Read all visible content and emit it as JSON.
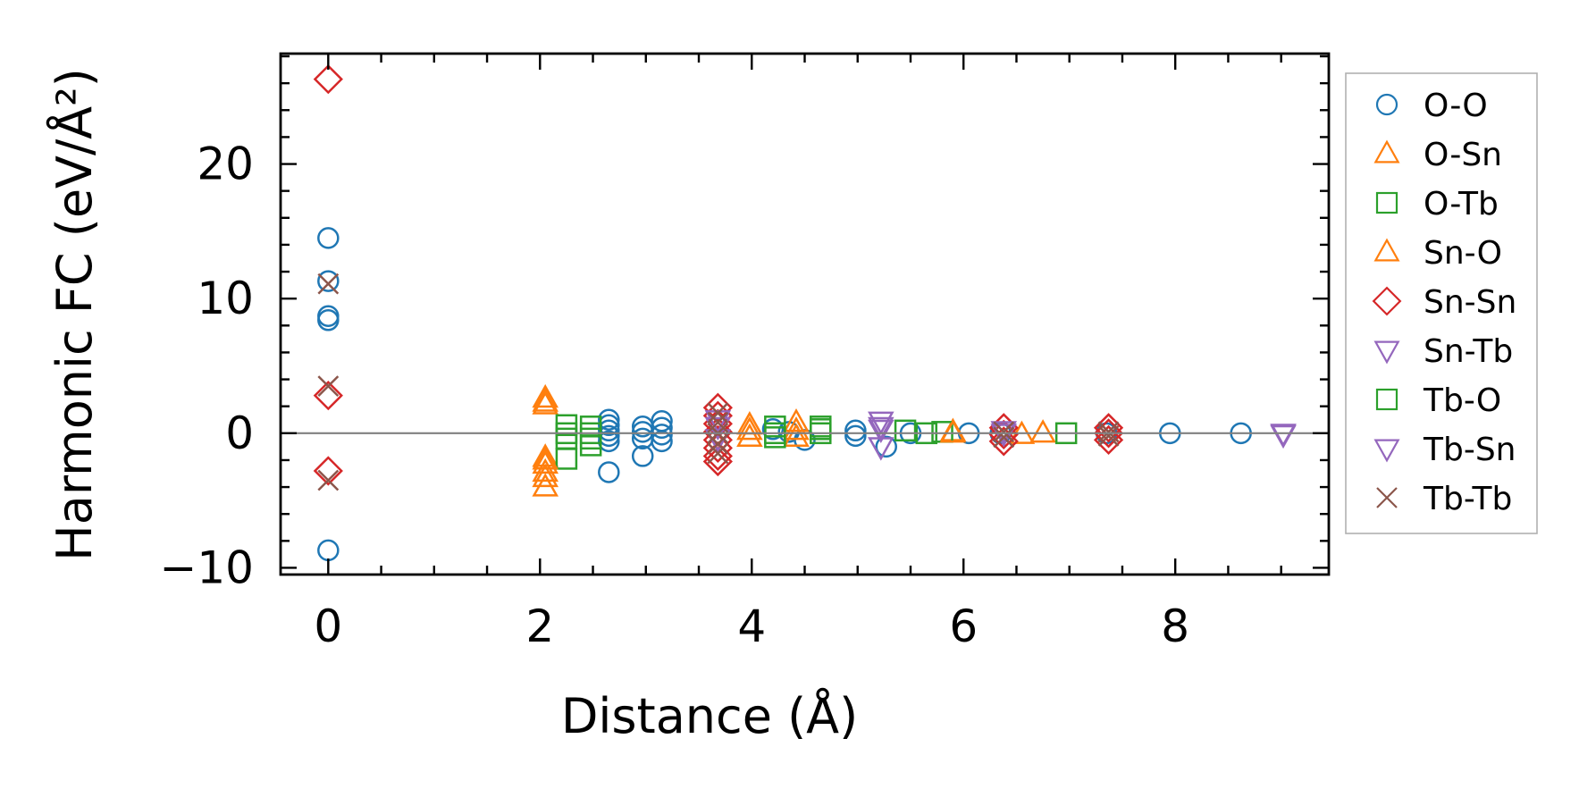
{
  "chart_data": {
    "type": "scatter",
    "xlabel": "Distance (Å)",
    "ylabel": "Harmonic FC (eV/Å²)",
    "xlim": [
      -0.45,
      9.45
    ],
    "ylim": [
      -10.5,
      28.2
    ],
    "x_ticks": [
      0,
      2,
      4,
      6,
      8
    ],
    "y_ticks": [
      -10,
      0,
      10,
      20
    ],
    "x_tick_labels": [
      "0",
      "2",
      "4",
      "6",
      "8"
    ],
    "y_tick_labels": [
      "−10",
      "0",
      "10",
      "20"
    ],
    "grid": false,
    "zero_line": true,
    "legend_position": "outside-right",
    "series": [
      {
        "name": "O-O",
        "marker": "circle",
        "color": "#1f77b4",
        "points": [
          [
            0,
            14.5
          ],
          [
            0,
            11.3
          ],
          [
            0,
            8.7
          ],
          [
            0,
            8.4
          ],
          [
            0,
            -8.7
          ],
          [
            2.65,
            1.0
          ],
          [
            2.65,
            0.6
          ],
          [
            2.65,
            0.2
          ],
          [
            2.65,
            -0.2
          ],
          [
            2.65,
            -0.6
          ],
          [
            2.65,
            -2.9
          ],
          [
            2.97,
            0.5
          ],
          [
            2.97,
            0.1
          ],
          [
            2.97,
            -0.4
          ],
          [
            2.97,
            -1.7
          ],
          [
            3.15,
            0.9
          ],
          [
            3.15,
            0.4
          ],
          [
            3.15,
            -0.1
          ],
          [
            3.15,
            -0.6
          ],
          [
            4.2,
            0.3
          ],
          [
            4.35,
            0.1
          ],
          [
            4.5,
            -0.5
          ],
          [
            4.98,
            0.2
          ],
          [
            4.98,
            -0.2
          ],
          [
            5.27,
            -1.0
          ],
          [
            5.5,
            0.0
          ],
          [
            6.05,
            0.0
          ],
          [
            6.35,
            0.0
          ],
          [
            7.35,
            0.0
          ],
          [
            7.95,
            0.0
          ],
          [
            8.62,
            0.0
          ]
        ]
      },
      {
        "name": "O-Sn",
        "marker": "triangle-up",
        "color": "#ff7f0e",
        "points": [
          [
            2.05,
            2.6
          ],
          [
            2.05,
            2.1
          ],
          [
            2.05,
            -1.8
          ],
          [
            2.05,
            -2.3
          ],
          [
            2.05,
            -2.9
          ],
          [
            2.05,
            -3.3
          ],
          [
            2.05,
            -4.0
          ],
          [
            3.98,
            0.6
          ],
          [
            3.98,
            -0.3
          ],
          [
            4.42,
            0.8
          ],
          [
            4.42,
            -0.3
          ],
          [
            5.9,
            0.1
          ],
          [
            6.55,
            -0.1
          ],
          [
            6.75,
            0.0
          ]
        ]
      },
      {
        "name": "O-Tb",
        "marker": "square",
        "color": "#2ca02c",
        "points": [
          [
            2.25,
            0.6
          ],
          [
            2.25,
            -0.4
          ],
          [
            2.25,
            -1.9
          ],
          [
            2.48,
            0.5
          ],
          [
            2.48,
            -0.4
          ],
          [
            2.48,
            -0.9
          ],
          [
            4.22,
            0.5
          ],
          [
            4.22,
            -0.3
          ],
          [
            4.65,
            0.5
          ],
          [
            4.65,
            0.0
          ],
          [
            5.45,
            0.2
          ],
          [
            5.65,
            0.0
          ],
          [
            5.8,
            0.1
          ],
          [
            6.97,
            0.0
          ]
        ]
      },
      {
        "name": "Sn-O",
        "marker": "triangle-up",
        "color": "#ff7f0e",
        "points": [
          [
            2.05,
            2.3
          ],
          [
            2.05,
            -2.0
          ],
          [
            3.98,
            0.2
          ],
          [
            4.42,
            0.2
          ],
          [
            5.9,
            0.0
          ]
        ]
      },
      {
        "name": "Sn-Sn",
        "marker": "diamond",
        "color": "#d62728",
        "points": [
          [
            0,
            26.3
          ],
          [
            0,
            2.8
          ],
          [
            0,
            -2.8
          ],
          [
            3.68,
            1.9
          ],
          [
            3.68,
            1.3
          ],
          [
            3.68,
            0.7
          ],
          [
            3.68,
            0.1
          ],
          [
            3.68,
            -0.5
          ],
          [
            3.68,
            -1.1
          ],
          [
            3.68,
            -1.7
          ],
          [
            3.68,
            -2.1
          ],
          [
            6.38,
            0.4
          ],
          [
            6.38,
            -0.1
          ],
          [
            6.38,
            -0.6
          ],
          [
            7.37,
            0.4
          ],
          [
            7.37,
            0.0
          ],
          [
            7.37,
            -0.5
          ]
        ]
      },
      {
        "name": "Sn-Tb",
        "marker": "triangle-down",
        "color": "#9467bd",
        "points": [
          [
            3.68,
            1.0
          ],
          [
            3.68,
            -0.4
          ],
          [
            5.22,
            0.9
          ],
          [
            5.22,
            0.3
          ],
          [
            5.22,
            -1.0
          ],
          [
            6.38,
            0.2
          ],
          [
            9.02,
            0.0
          ]
        ]
      },
      {
        "name": "Tb-O",
        "marker": "square",
        "color": "#2ca02c",
        "points": [
          [
            2.25,
            0.0
          ],
          [
            2.48,
            0.0
          ],
          [
            4.22,
            0.0
          ],
          [
            4.65,
            0.3
          ]
        ]
      },
      {
        "name": "Tb-Sn",
        "marker": "triangle-down",
        "color": "#9467bd",
        "points": [
          [
            3.68,
            0.5
          ],
          [
            5.22,
            0.5
          ],
          [
            6.38,
            0.0
          ],
          [
            9.02,
            -0.1
          ]
        ]
      },
      {
        "name": "Tb-Tb",
        "marker": "x",
        "color": "#8c564b",
        "points": [
          [
            0,
            11.1
          ],
          [
            0,
            3.5
          ],
          [
            0,
            -3.5
          ],
          [
            3.68,
            1.5
          ],
          [
            3.68,
            0.8
          ],
          [
            3.68,
            0.0
          ],
          [
            3.68,
            -0.8
          ],
          [
            3.68,
            -1.5
          ],
          [
            6.38,
            0.1
          ],
          [
            6.38,
            -0.3
          ],
          [
            7.37,
            0.1
          ],
          [
            7.37,
            -0.2
          ]
        ]
      }
    ]
  }
}
